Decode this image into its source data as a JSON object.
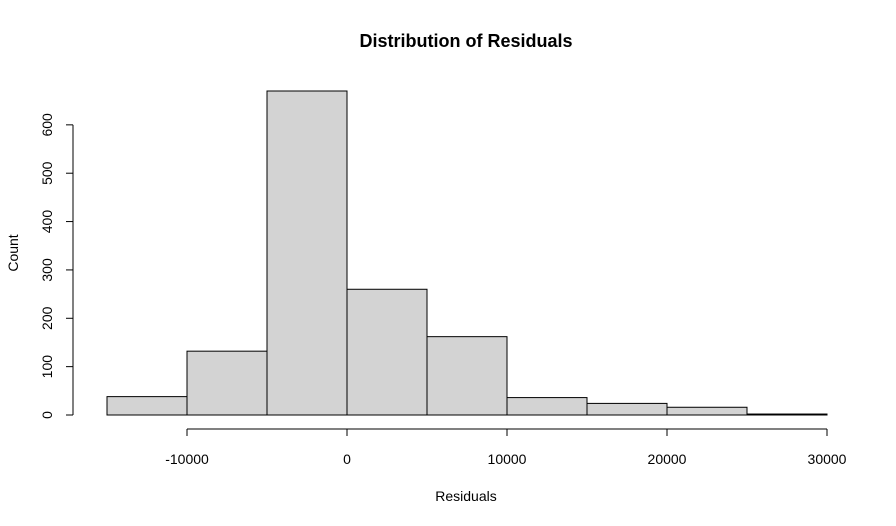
{
  "chart_data": {
    "type": "bar",
    "title": "Distribution of Residuals",
    "xlabel": "Residuals",
    "ylabel": "Count",
    "bin_edges": [
      -15000,
      -10000,
      -5000,
      0,
      5000,
      10000,
      15000,
      20000,
      25000,
      30000
    ],
    "values": [
      38,
      132,
      670,
      260,
      162,
      36,
      24,
      16,
      2
    ],
    "xlim": [
      -15000,
      30000
    ],
    "ylim": [
      0,
      670
    ],
    "x_ticks": [
      -10000,
      0,
      10000,
      20000,
      30000
    ],
    "x_tick_labels": [
      "-10000",
      "0",
      "10000",
      "20000",
      "30000"
    ],
    "y_ticks": [
      0,
      100,
      200,
      300,
      400,
      500,
      600
    ],
    "y_tick_labels": [
      "0",
      "100",
      "200",
      "300",
      "400",
      "500",
      "600"
    ],
    "grid": false,
    "colors": {
      "bar_fill": "#d3d3d3",
      "bar_stroke": "#000000",
      "axis": "#000000",
      "background": "#ffffff"
    }
  }
}
